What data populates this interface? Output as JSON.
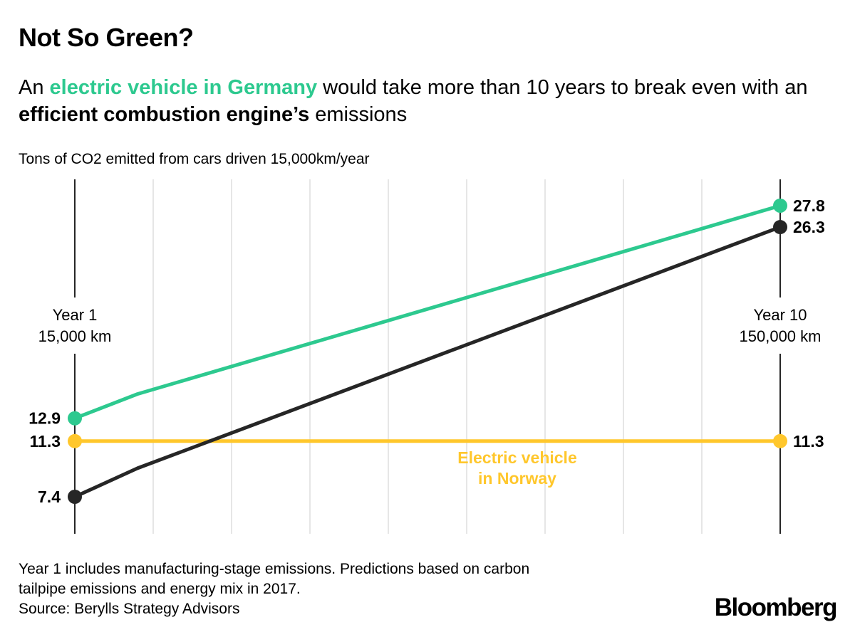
{
  "chart_data": {
    "type": "line",
    "title": "Not So Green?",
    "subtitle": {
      "pre": "An ",
      "highlight": "electric vehicle in Germany",
      "mid": " would take more than 10 years to break even with an ",
      "bold": "efficient combustion engine’s",
      "post": " emissions"
    },
    "ylabel": "Tons of CO2 emitted from cars driven 15,000km/year",
    "xlim": [
      1,
      10
    ],
    "ylim": [
      5,
      29
    ],
    "grid": true,
    "x_start_label": [
      "Year 1",
      "15,000 km"
    ],
    "x_end_label": [
      "Year 10",
      "150,000 km"
    ],
    "series": [
      {
        "name": "Electric vehicle in Germany",
        "color": "#2DC98F",
        "points": [
          [
            1,
            12.9
          ],
          [
            1.8,
            14.6
          ],
          [
            10,
            27.8
          ]
        ],
        "start_label": "12.9",
        "end_label": "27.8"
      },
      {
        "name": "Efficient combustion engine",
        "color": "#262626",
        "points": [
          [
            1,
            7.4
          ],
          [
            1.8,
            9.4
          ],
          [
            10,
            26.3
          ]
        ],
        "start_label": "7.4",
        "end_label": "26.3"
      },
      {
        "name": "Electric vehicle in Norway",
        "color": "#FFC72C",
        "points": [
          [
            1,
            11.3
          ],
          [
            10,
            11.3
          ]
        ],
        "start_label": "11.3",
        "end_label": "11.3",
        "annotation": [
          "Electric vehicle",
          "in Norway"
        ]
      }
    ]
  },
  "footnote": [
    "Year 1 includes manufacturing-stage emissions. Predictions based on carbon",
    "tailpipe emissions and energy mix in 2017.",
    "Source: Berylls Strategy Advisors"
  ],
  "logo": "Bloomberg"
}
